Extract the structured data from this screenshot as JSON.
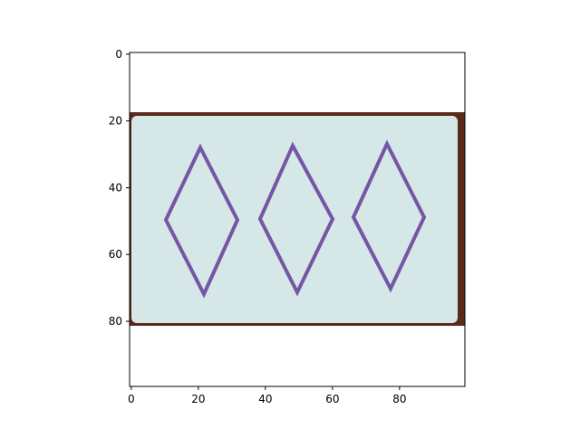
{
  "chart_data": {
    "type": "image",
    "xlim": [
      -0.5,
      99.5
    ],
    "ylim": [
      99.5,
      -0.5
    ],
    "xticks": [
      0,
      20,
      40,
      60,
      80
    ],
    "yticks": [
      0,
      20,
      40,
      60,
      80
    ]
  }
}
